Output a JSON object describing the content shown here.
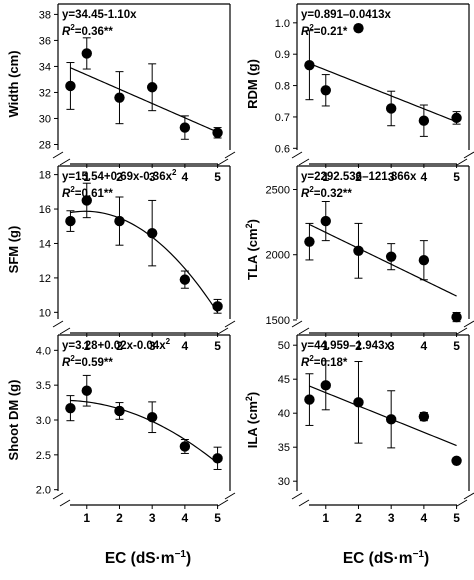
{
  "chart_data": [
    {
      "type": "scatter",
      "ylabel": "Width (cm)",
      "x": [
        0.5,
        1,
        2,
        3,
        4,
        5
      ],
      "y": [
        32.5,
        35.0,
        31.6,
        32.4,
        29.3,
        28.9
      ],
      "error": [
        1.8,
        1.2,
        2.0,
        1.8,
        0.9,
        0.4
      ],
      "yticks": [
        28,
        30,
        32,
        34,
        36,
        38
      ],
      "ylim": [
        26.5,
        38.8
      ],
      "xlim": [
        0.12,
        5.38
      ],
      "fit": {
        "kind": "linear",
        "coef": [
          34.45,
          -1.1
        ],
        "range": [
          0.5,
          5
        ]
      },
      "equation": "y=34.45-1.10x",
      "r2_label": "R",
      "r2_value": "=0.36**",
      "axis_break": true
    },
    {
      "type": "scatter",
      "ylabel": "RDM (g)",
      "x": [
        0.5,
        1,
        2,
        3,
        4,
        5
      ],
      "y": [
        0.865,
        0.785,
        0.983,
        0.727,
        0.688,
        0.697
      ],
      "error": [
        0.11,
        0.05,
        0.01,
        0.055,
        0.05,
        0.02
      ],
      "yticks": [
        0.6,
        0.7,
        0.8,
        0.9,
        1.0
      ],
      "ylim": [
        0.55,
        1.06
      ],
      "xlim": [
        0.12,
        5.38
      ],
      "fit": {
        "kind": "linear",
        "coef": [
          0.891,
          -0.0413
        ],
        "range": [
          0.5,
          5
        ]
      },
      "equation": "y=0.891–0.0413x",
      "r2_label": "R",
      "r2_value": "=0.21*",
      "axis_break": true
    },
    {
      "type": "scatter",
      "ylabel": "SFM (g)",
      "x": [
        0.5,
        1,
        2,
        3,
        4,
        5
      ],
      "y": [
        15.3,
        16.5,
        15.3,
        14.6,
        11.9,
        10.35
      ],
      "error": [
        0.6,
        1.0,
        1.4,
        1.9,
        0.5,
        0.4
      ],
      "yticks": [
        10,
        12,
        14,
        16,
        18
      ],
      "ylim": [
        8.8,
        18.5
      ],
      "xlim": [
        0.12,
        5.38
      ],
      "fit": {
        "kind": "quadratic",
        "coef": [
          15.54,
          0.69,
          -0.36
        ],
        "range": [
          0.5,
          5
        ]
      },
      "equation": "y=15.54+0.69x-0.36x",
      "equation_sup": "2",
      "r2_label": "R",
      "r2_value": "=0.61**",
      "axis_break": true
    },
    {
      "type": "scatter",
      "ylabel": "TLA (cm",
      "ylabel_sup": "2",
      "ylabel_end": ")",
      "x": [
        0.5,
        1,
        2,
        3,
        4,
        5
      ],
      "y": [
        2100,
        2258,
        2030,
        1985,
        1958,
        1522
      ],
      "error": [
        140,
        150,
        210,
        100,
        150,
        35
      ],
      "yticks": [
        1500,
        2000,
        2500
      ],
      "ylim": [
        1400,
        2680
      ],
      "xlim": [
        0.12,
        5.38
      ],
      "fit": {
        "kind": "linear",
        "coef": [
          2292.536,
          -121.866
        ],
        "range": [
          0.5,
          5
        ]
      },
      "equation": "y=2292.536–121.866x",
      "r2_label": "R",
      "r2_value": "=0.32**",
      "axis_break": true
    },
    {
      "type": "scatter",
      "ylabel": "Shoot DM (g)",
      "x": [
        0.5,
        1,
        2,
        3,
        4,
        5
      ],
      "y": [
        3.17,
        3.42,
        3.13,
        3.04,
        2.62,
        2.45
      ],
      "error": [
        0.18,
        0.22,
        0.12,
        0.22,
        0.1,
        0.16
      ],
      "yticks": [
        2.0,
        2.5,
        3.0,
        3.5,
        4.0
      ],
      "ylim": [
        1.78,
        4.22
      ],
      "xlim": [
        0.12,
        5.38
      ],
      "fit": {
        "kind": "quadratic",
        "coef": [
          3.28,
          0.02,
          -0.04
        ],
        "range": [
          0.5,
          5
        ]
      },
      "equation": "y=3.28+0.02x-0.04x",
      "equation_sup": "2",
      "r2_label": "R",
      "r2_value": "=0.59**",
      "axis_break": true
    },
    {
      "type": "scatter",
      "ylabel": "ILA (cm",
      "ylabel_sup": "2",
      "ylabel_end": ")",
      "x": [
        0.5,
        1,
        2,
        3,
        4,
        5
      ],
      "y": [
        42.0,
        44.1,
        41.6,
        39.1,
        39.5,
        33.0
      ],
      "error": [
        3.8,
        3.6,
        6.0,
        4.2,
        0.6,
        0.4
      ],
      "yticks": [
        30,
        35,
        40,
        45,
        50
      ],
      "ylim": [
        26.5,
        51.5
      ],
      "xlim": [
        0.12,
        5.38
      ],
      "fit": {
        "kind": "linear",
        "coef": [
          44.959,
          -1.943
        ],
        "range": [
          0.5,
          5
        ]
      },
      "equation": "y=44.959–1.943x",
      "r2_label": "R",
      "r2_value": "=0.18*",
      "axis_break": true
    }
  ],
  "xticks": [
    "1",
    "2",
    "3",
    "4",
    "5"
  ],
  "xtick_values": [
    1,
    2,
    3,
    4,
    5
  ],
  "xlabel": "EC (dS·m",
  "xlabel_sup": "−1",
  "xlabel_end": ")",
  "colors": {
    "marker": "#000000",
    "line": "#000000",
    "background": "#ffffff"
  }
}
